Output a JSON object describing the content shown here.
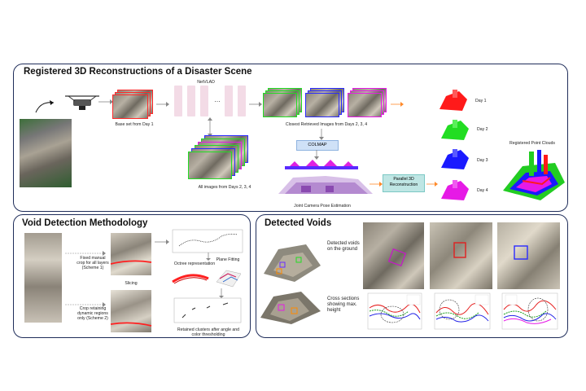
{
  "panels": {
    "top": {
      "title": "Registered 3D Reconstructions of a Disaster Scene"
    },
    "void_method": {
      "title": "Void Detection Methodology"
    },
    "detected": {
      "title": "Detected Voids"
    }
  },
  "top_labels": {
    "base_set": "Base set from Day 1",
    "netvlad": "NetVLAD",
    "closest": "Closest Retrieved Images from Days 2, 3, 4",
    "all_images": "All images from Days 2, 3, 4",
    "colmap": "COLMAP",
    "joint_pose": "Joint Camera Pose Estimation",
    "parallel": "Parallel 3D Reconstruction",
    "registered": "Registered Point Clouds",
    "ellipsis": "…",
    "days": [
      "Day 1",
      "Day 2",
      "Day 3",
      "Day 4"
    ]
  },
  "method_labels": {
    "scheme1": "Fixed manual crop for all layers (Scheme 1)",
    "scheme2": "Crop retaining dynamic regions only (Scheme 2)",
    "slicing": "Slicing",
    "octree": "Octree representation",
    "plane": "Plane Fitting",
    "retained": "Retained clusters after angle and color thresholding"
  },
  "detected_labels": {
    "ground": "Detected voids on the ground",
    "cross": "Cross sections showing max. height"
  },
  "colors": {
    "border": "#1f2d5a",
    "day1": "#ff1a1a",
    "day2": "#22dd22",
    "day3": "#1a1aff",
    "day4": "#e61ae6",
    "pink_block": "#f3dbe6",
    "colmap": "#cfe1f7",
    "recon": "#bfe6e4"
  }
}
